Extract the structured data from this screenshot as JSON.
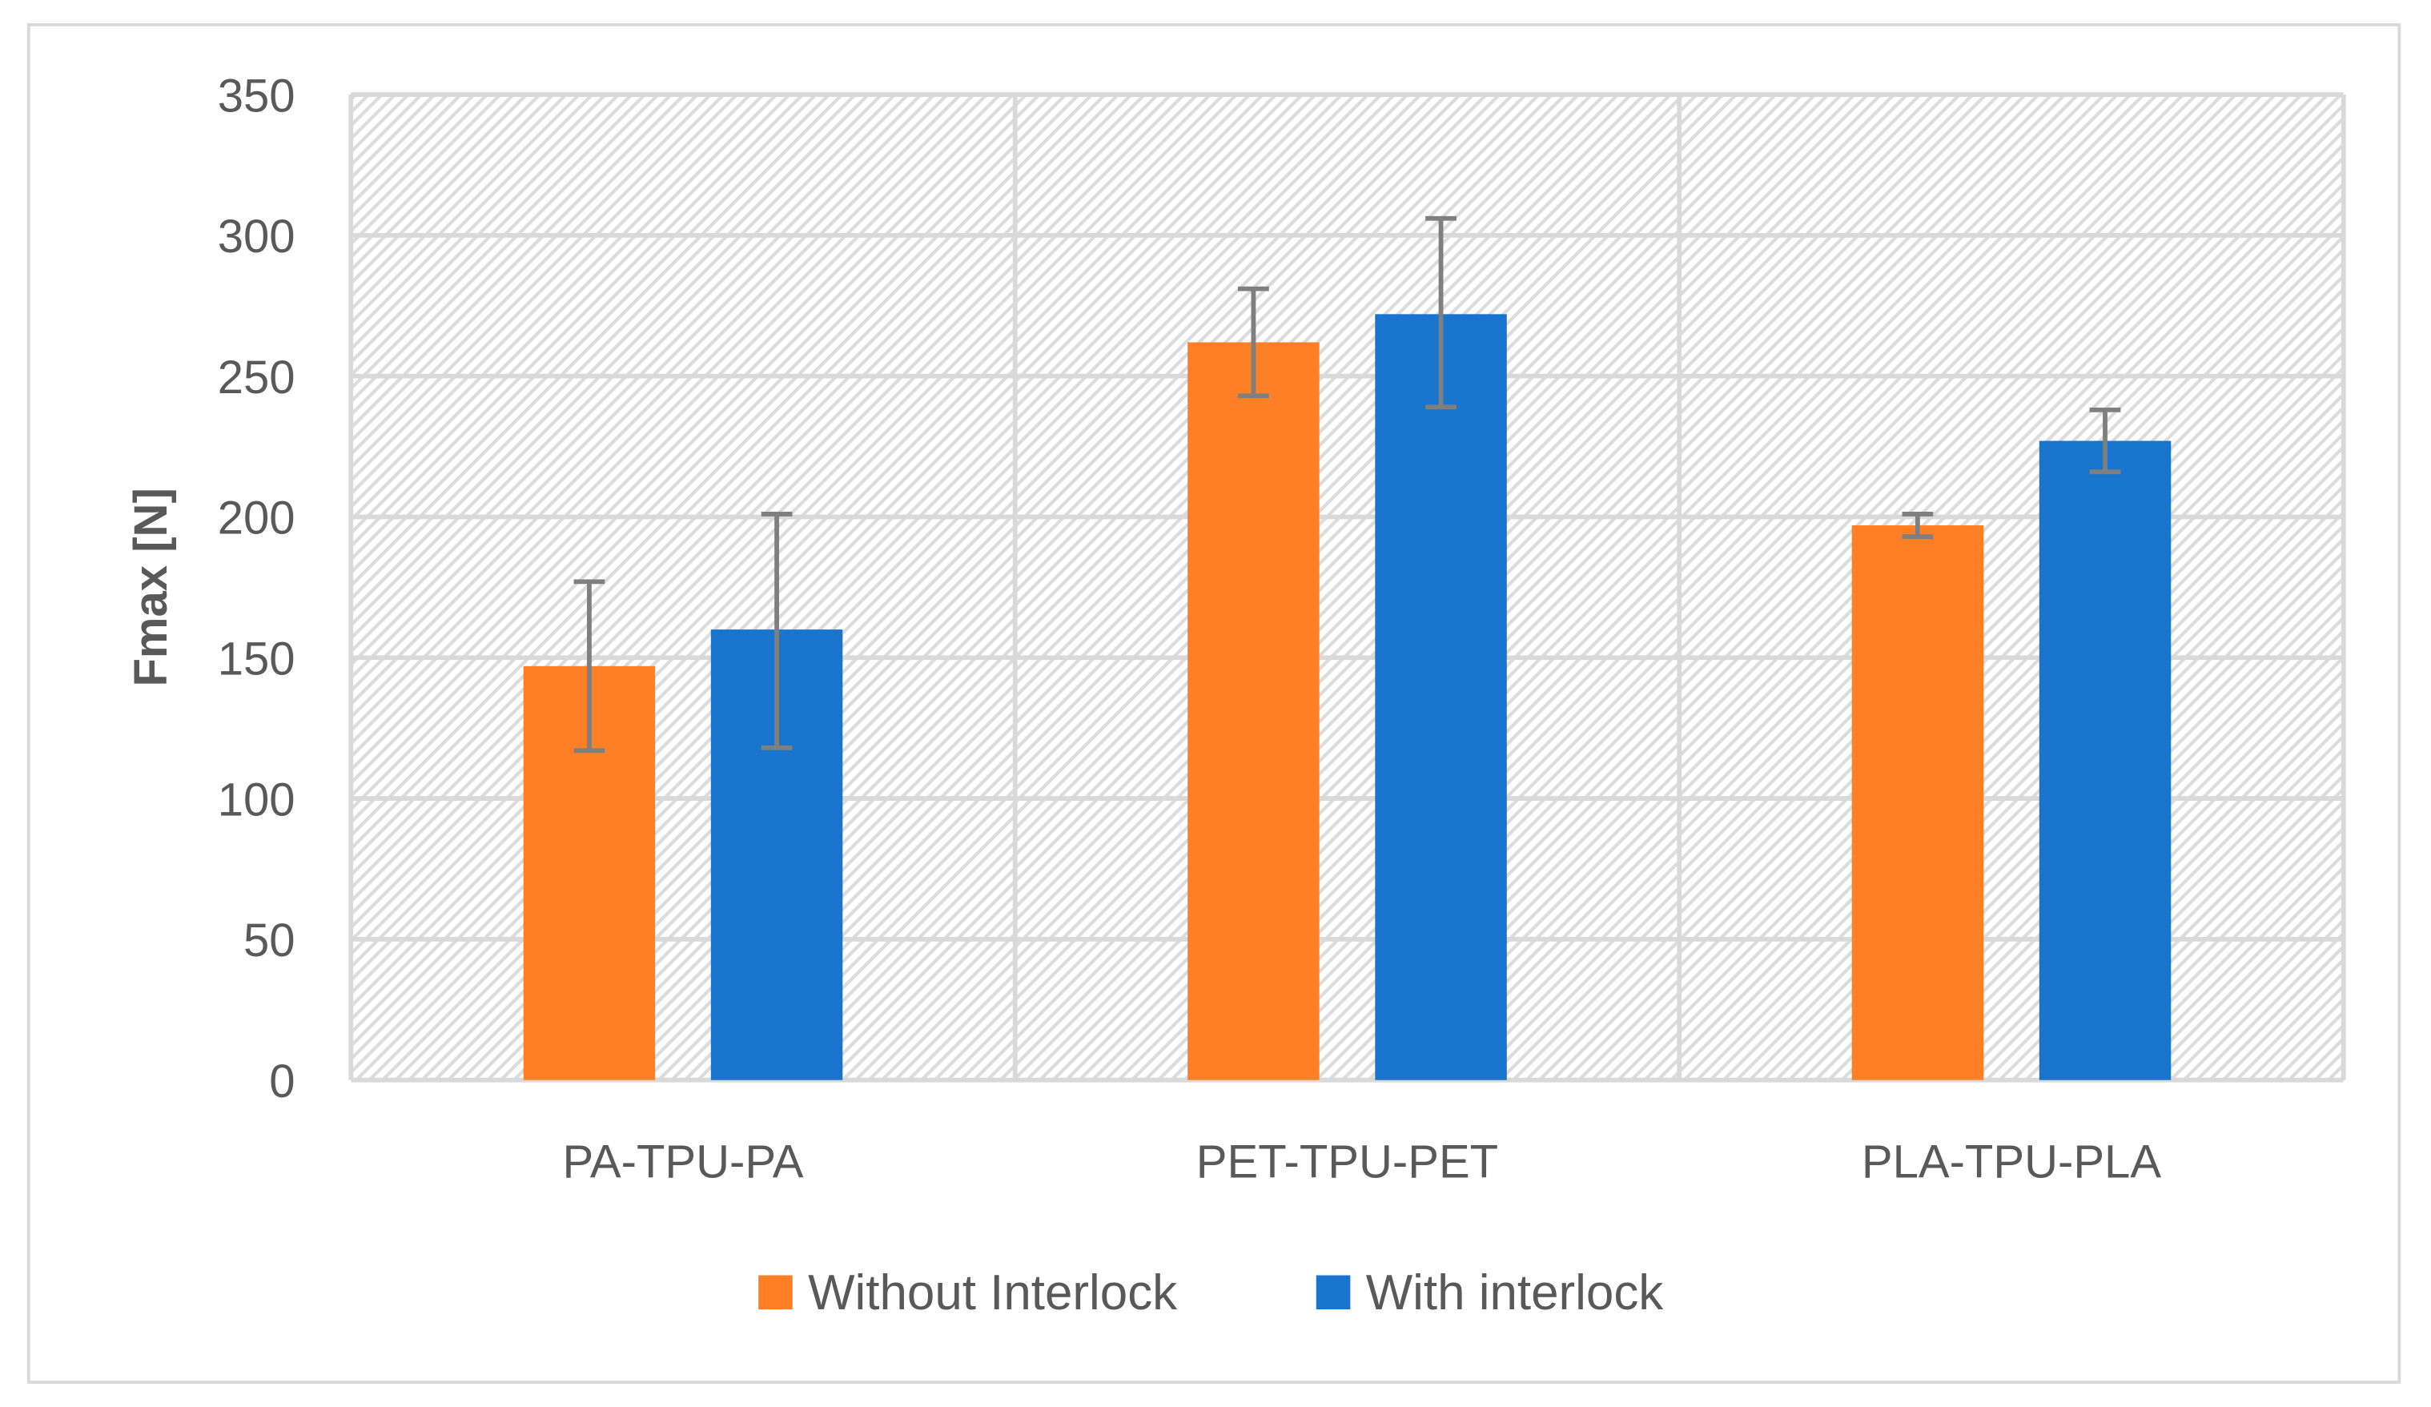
{
  "chart_data": {
    "type": "bar",
    "title": "",
    "xlabel": "",
    "ylabel": "Fmax [N]",
    "ylim": [
      0,
      350
    ],
    "yticks": [
      0,
      50,
      100,
      150,
      200,
      250,
      300,
      350
    ],
    "grid": true,
    "legend_position": "bottom",
    "categories": [
      "PA-TPU-PA",
      "PET-TPU-PET",
      "PLA-TPU-PLA"
    ],
    "series": [
      {
        "name": "Without Interlock",
        "color": "#FF7F27",
        "values": [
          147,
          262,
          197
        ],
        "error_low": [
          117,
          243,
          193
        ],
        "error_high": [
          177,
          281,
          201
        ]
      },
      {
        "name": "With interlock",
        "color": "#1874CD",
        "values": [
          160,
          272,
          227
        ],
        "error_low": [
          118,
          239,
          216
        ],
        "error_high": [
          201,
          306,
          238
        ]
      }
    ],
    "colors": {
      "grid": "#D9D9D9",
      "error_bar": "#7F7F7F",
      "text": "#595959"
    }
  }
}
